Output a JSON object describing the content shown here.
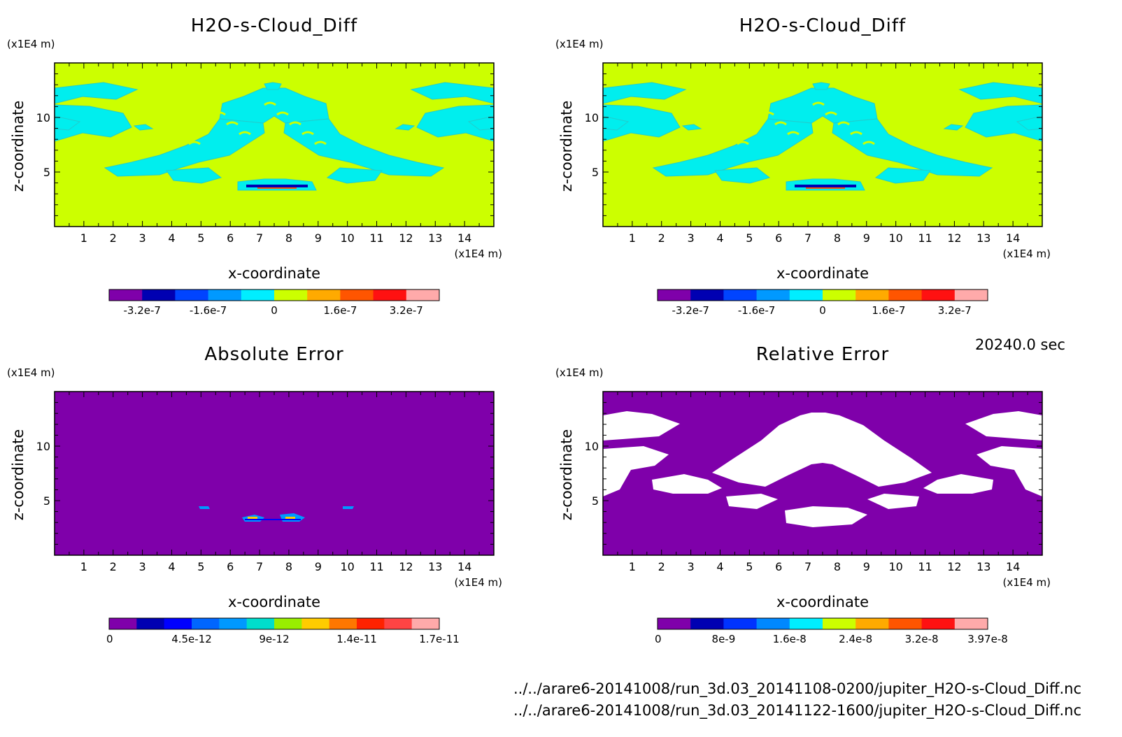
{
  "chart_data": [
    {
      "type": "heatmap",
      "title": "H2O-s-Cloud_Diff",
      "xlabel": "x-coordinate",
      "ylabel": "z-coordinate",
      "x_unit": "(x1E4 m)",
      "y_unit": "(x1E4 m)",
      "xlim": [
        0,
        15
      ],
      "ylim": [
        0,
        15
      ],
      "x_ticks": [
        1,
        2,
        3,
        4,
        5,
        6,
        7,
        8,
        9,
        10,
        11,
        12,
        13,
        14
      ],
      "y_ticks": [
        5,
        10
      ],
      "background": "#ccff00",
      "feature": "#00eeee",
      "colorbar": {
        "colors": [
          "#7f00aa",
          "#0000b2",
          "#0044ff",
          "#0099ff",
          "#00eeff",
          "#ccff00",
          "#ffaa00",
          "#ff5500",
          "#ff1111",
          "#ffaaaa"
        ],
        "labels": [
          "-3.2e-7",
          "-1.6e-7",
          "0",
          "1.6e-7",
          "3.2e-7"
        ]
      }
    },
    {
      "type": "heatmap",
      "title": "H2O-s-Cloud_Diff",
      "xlabel": "x-coordinate",
      "ylabel": "z-coordinate",
      "x_unit": "(x1E4 m)",
      "y_unit": "(x1E4 m)",
      "xlim": [
        0,
        15
      ],
      "ylim": [
        0,
        15
      ],
      "x_ticks": [
        1,
        2,
        3,
        4,
        5,
        6,
        7,
        8,
        9,
        10,
        11,
        12,
        13,
        14
      ],
      "y_ticks": [
        5,
        10
      ],
      "background": "#ccff00",
      "feature": "#00eeee",
      "colorbar": {
        "colors": [
          "#7f00aa",
          "#0000b2",
          "#0044ff",
          "#0099ff",
          "#00eeff",
          "#ccff00",
          "#ffaa00",
          "#ff5500",
          "#ff1111",
          "#ffaaaa"
        ],
        "labels": [
          "-3.2e-7",
          "-1.6e-7",
          "0",
          "1.6e-7",
          "3.2e-7"
        ]
      }
    },
    {
      "type": "heatmap",
      "title": "Absolute Error",
      "xlabel": "x-coordinate",
      "ylabel": "z-coordinate",
      "x_unit": "(x1E4 m)",
      "y_unit": "(x1E4 m)",
      "xlim": [
        0,
        15
      ],
      "ylim": [
        0,
        15
      ],
      "x_ticks": [
        1,
        2,
        3,
        4,
        5,
        6,
        7,
        8,
        9,
        10,
        11,
        12,
        13,
        14
      ],
      "y_ticks": [
        5,
        10
      ],
      "background": "#7f00aa",
      "feature": "#0099ff",
      "colorbar": {
        "colors": [
          "#7f00aa",
          "#0000b2",
          "#0000ff",
          "#0066ff",
          "#0099ff",
          "#00ddcc",
          "#99ee00",
          "#ffcc00",
          "#ff7700",
          "#ff2200",
          "#ff4444",
          "#ffaaaa"
        ],
        "labels": [
          "0",
          "4.5e-12",
          "9e-12",
          "1.4e-11",
          "1.7e-11"
        ]
      }
    },
    {
      "type": "heatmap",
      "title": "Relative Error",
      "xlabel": "x-coordinate",
      "ylabel": "z-coordinate",
      "x_unit": "(x1E4 m)",
      "y_unit": "(x1E4 m)",
      "xlim": [
        0,
        15
      ],
      "ylim": [
        0,
        15
      ],
      "x_ticks": [
        1,
        2,
        3,
        4,
        5,
        6,
        7,
        8,
        9,
        10,
        11,
        12,
        13,
        14
      ],
      "y_ticks": [
        5,
        10
      ],
      "background": "#7f00aa",
      "feature": "#ffffff",
      "colorbar": {
        "colors": [
          "#7f00aa",
          "#0000b2",
          "#0033ff",
          "#0088ff",
          "#00eeff",
          "#ccff00",
          "#ffaa00",
          "#ff5500",
          "#ff1111",
          "#ffaaaa"
        ],
        "labels": [
          "0",
          "8e-9",
          "1.6e-8",
          "2.4e-8",
          "3.2e-8",
          "3.97e-8"
        ]
      }
    }
  ],
  "timestamp": "20240.0 sec",
  "footer": {
    "file1": "../../arare6-20141008/run_3d.03_20141108-0200/jupiter_H2O-s-Cloud_Diff.nc",
    "file2": "../../arare6-20141008/run_3d.03_20141122-1600/jupiter_H2O-s-Cloud_Diff.nc"
  }
}
